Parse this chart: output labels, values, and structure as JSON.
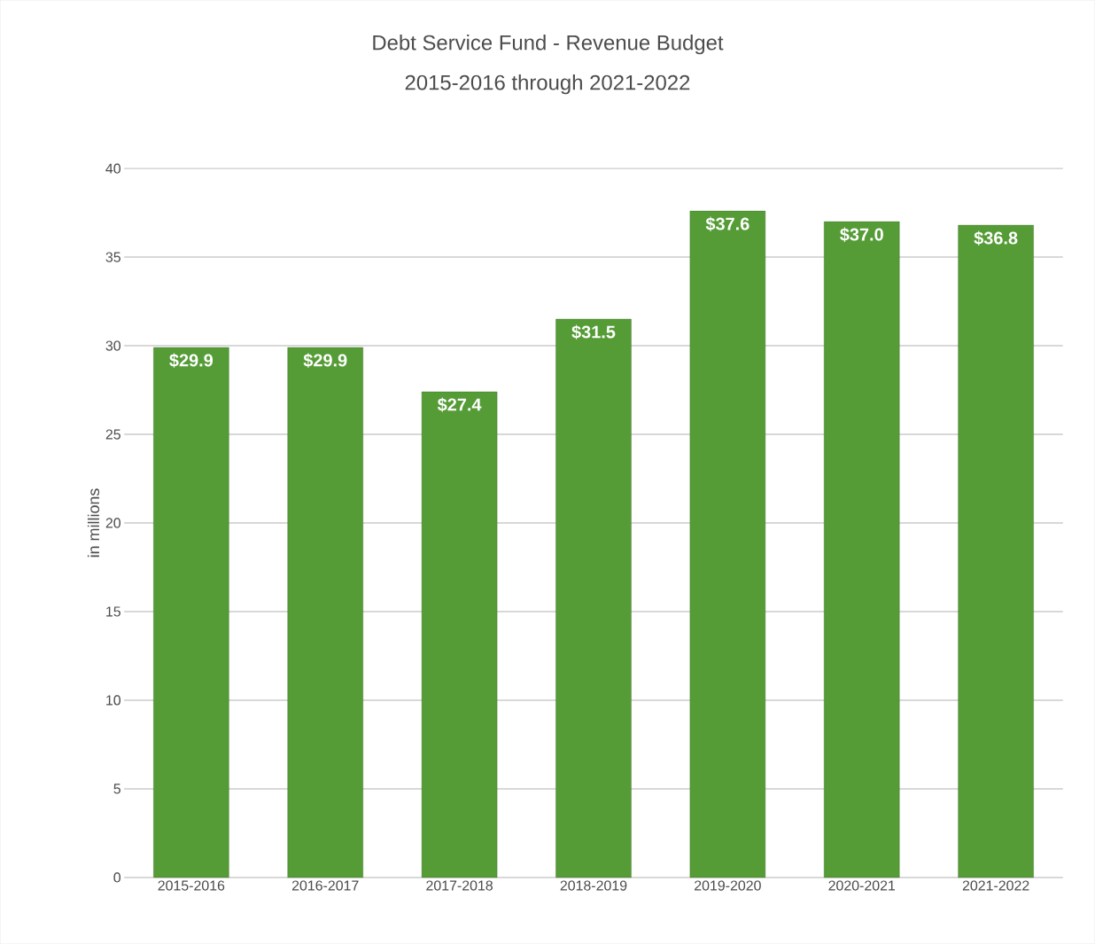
{
  "chart_data": {
    "type": "bar",
    "title": "Debt Service Fund - Revenue Budget",
    "subtitle": "2015-2016 through 2021-2022",
    "ylabel": "in millions",
    "categories": [
      "2015-2016",
      "2016-2017",
      "2017-2018",
      "2018-2019",
      "2019-2020",
      "2020-2021",
      "2021-2022"
    ],
    "values": [
      29.9,
      29.9,
      27.4,
      31.5,
      37.6,
      37.0,
      36.8
    ],
    "value_labels": [
      "$29.9",
      "$29.9",
      "$27.4",
      "$31.5",
      "$37.6",
      "$37.0",
      "$36.8"
    ],
    "color": "#559c37",
    "ylim": [
      0,
      40
    ],
    "yticks": [
      0,
      5,
      10,
      15,
      20,
      25,
      30,
      35,
      40
    ],
    "grid": "y"
  }
}
